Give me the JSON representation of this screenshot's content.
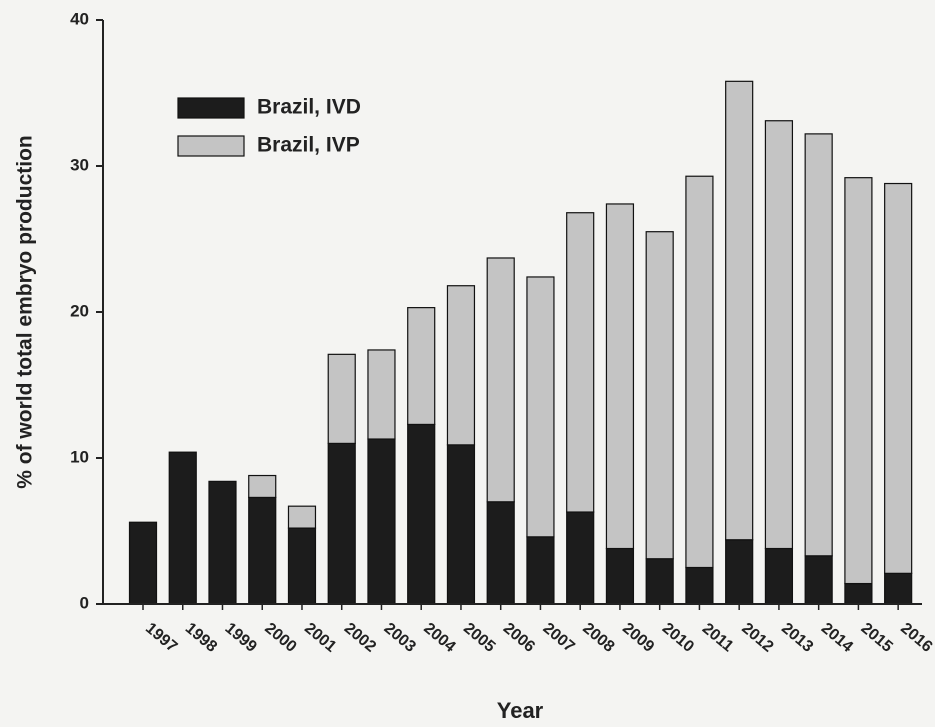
{
  "chart_data": {
    "type": "stacked_bar",
    "xlabel": "Year",
    "ylabel": "% of world total embryo production",
    "categories": [
      "1997",
      "1998",
      "1999",
      "2000",
      "2001",
      "2002",
      "2003",
      "2004",
      "2005",
      "2006",
      "2007",
      "2008",
      "2009",
      "2010",
      "2011",
      "2012",
      "2013",
      "2014",
      "2015",
      "2016"
    ],
    "series": [
      {
        "name": "Brazil, IVD",
        "color": "#1c1c1c",
        "values": [
          5.6,
          10.4,
          8.4,
          7.3,
          5.2,
          11.0,
          11.3,
          12.3,
          10.9,
          7.0,
          4.6,
          6.3,
          3.8,
          3.1,
          2.5,
          4.4,
          3.8,
          3.3,
          1.4,
          2.1
        ]
      },
      {
        "name": "Brazil, IVP",
        "color": "#c4c4c4",
        "values": [
          0,
          0,
          0,
          1.5,
          1.5,
          6.1,
          6.1,
          8.0,
          10.9,
          16.7,
          17.8,
          20.5,
          23.6,
          22.4,
          26.8,
          31.4,
          29.3,
          28.9,
          27.8,
          26.7
        ]
      }
    ],
    "ylim": [
      0,
      40
    ],
    "yticks": [
      0,
      10,
      20,
      30,
      40
    ],
    "legend": "upper left"
  }
}
